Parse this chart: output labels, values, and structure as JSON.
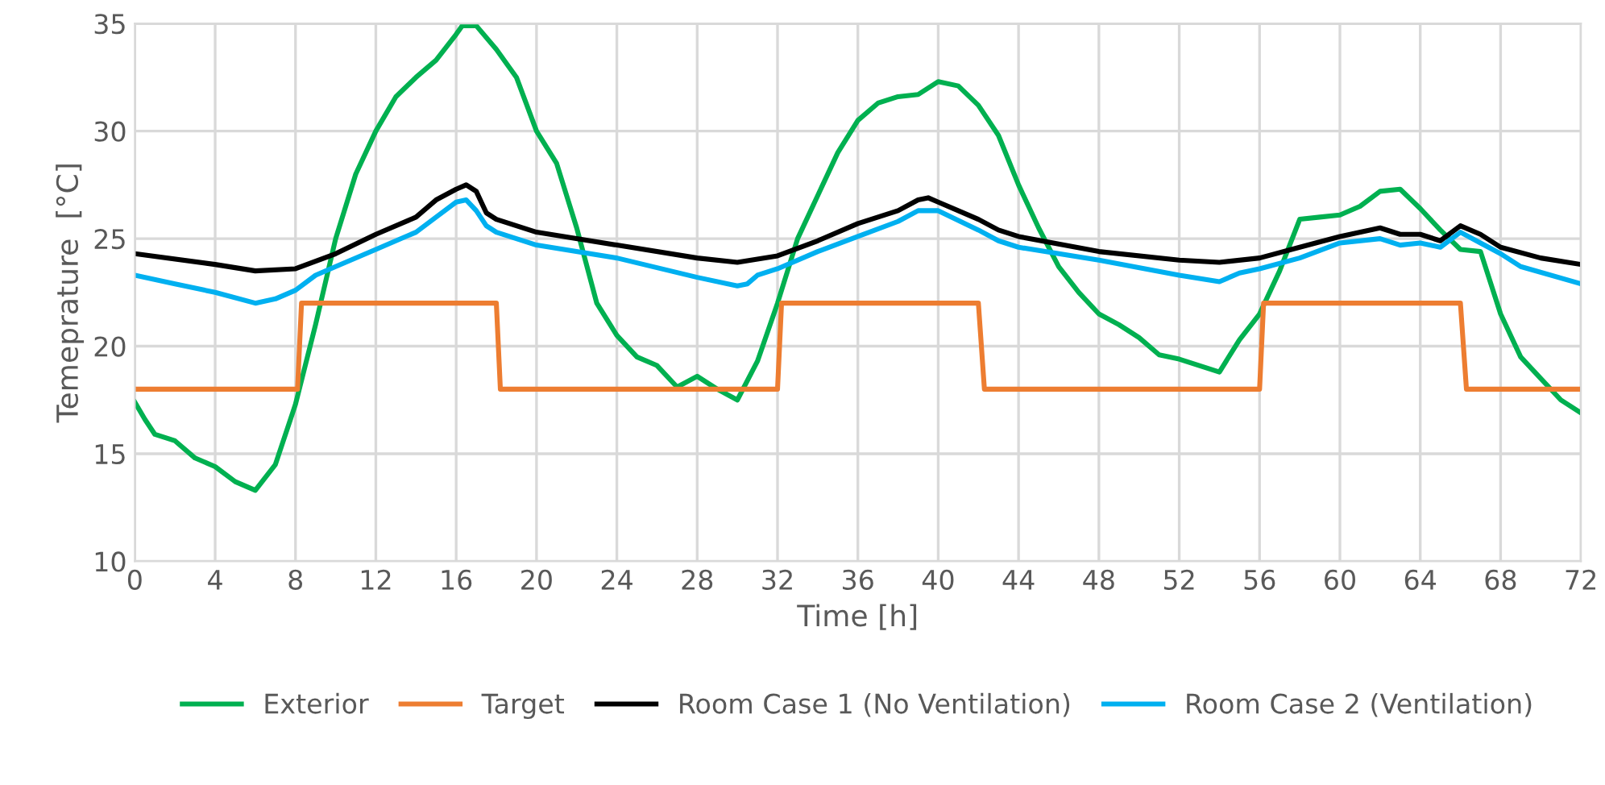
{
  "chart_data": {
    "type": "line",
    "xlabel": "Time [h]",
    "ylabel": "Temeprature  [°C]",
    "xlim": [
      0,
      72
    ],
    "xticks": [
      0,
      4,
      8,
      12,
      16,
      20,
      24,
      28,
      32,
      36,
      40,
      44,
      48,
      52,
      56,
      60,
      64,
      68,
      72
    ],
    "ylim": [
      10,
      35
    ],
    "yticks": [
      10,
      15,
      20,
      25,
      30,
      35
    ],
    "grid": true,
    "legend": "bottom",
    "marker": "none",
    "line_style": "solid",
    "series": [
      {
        "name": "Exterior",
        "color": "#00b050",
        "x": [
          0,
          0.5,
          1,
          2,
          3,
          4,
          5,
          6,
          7,
          8,
          9,
          10,
          11,
          12,
          13,
          14,
          15,
          16,
          16.3,
          17,
          18,
          19,
          20,
          21,
          22,
          23,
          24,
          25,
          26,
          27,
          28,
          29,
          30,
          31,
          32,
          33,
          34,
          35,
          36,
          37,
          38,
          39,
          40,
          41,
          42,
          43,
          44,
          45,
          46,
          47,
          48,
          49,
          50,
          51,
          52,
          53,
          54,
          55,
          56,
          57,
          58,
          59,
          60,
          61,
          62,
          63,
          64,
          65,
          66,
          67,
          68,
          69,
          70,
          71,
          72
        ],
        "values": [
          17.4,
          16.6,
          15.9,
          15.6,
          14.8,
          14.4,
          13.7,
          13.3,
          14.5,
          17.3,
          21,
          25,
          28,
          30,
          31.6,
          32.5,
          33.3,
          34.5,
          34.9,
          34.9,
          33.8,
          32.5,
          30,
          28.5,
          25.5,
          22,
          20.5,
          19.5,
          19.1,
          18.1,
          18.6,
          18,
          17.5,
          19.3,
          22,
          25,
          27,
          29,
          30.5,
          31.3,
          31.6,
          31.7,
          32.3,
          32.1,
          31.2,
          29.8,
          27.5,
          25.5,
          23.7,
          22.5,
          21.5,
          21,
          20.4,
          19.6,
          19.4,
          19.1,
          18.8,
          20.3,
          21.5,
          23.5,
          25.9,
          26,
          26.1,
          26.5,
          27.2,
          27.3,
          26.4,
          25.4,
          24.5,
          24.4,
          21.5,
          19.5,
          18.5,
          17.5,
          16.9
        ]
      },
      {
        "name": "Target",
        "color": "#ed7d31",
        "x": [
          0,
          8.1,
          8.3,
          18.0,
          18.2,
          32.0,
          32.2,
          42.0,
          42.3,
          56.0,
          56.2,
          66.0,
          66.3,
          72
        ],
        "values": [
          18,
          18,
          22,
          22,
          18,
          18,
          22,
          22,
          18,
          18,
          22,
          22,
          18,
          18
        ]
      },
      {
        "name": "Room Case 1 (No Ventilation)",
        "color": "#000000",
        "x": [
          0,
          4,
          6,
          8,
          10,
          12,
          14,
          15,
          16,
          16.5,
          17,
          17.5,
          18,
          20,
          24,
          28,
          30,
          32,
          34,
          36,
          38,
          39,
          39.5,
          40,
          42,
          43,
          44,
          48,
          52,
          54,
          56,
          58,
          60,
          62,
          63,
          64,
          65,
          66,
          67,
          68,
          70,
          72
        ],
        "values": [
          24.3,
          23.8,
          23.5,
          23.6,
          24.3,
          25.2,
          26,
          26.8,
          27.3,
          27.5,
          27.2,
          26.2,
          25.9,
          25.3,
          24.7,
          24.1,
          23.9,
          24.2,
          24.9,
          25.7,
          26.3,
          26.8,
          26.9,
          26.7,
          25.9,
          25.4,
          25.1,
          24.4,
          24.0,
          23.9,
          24.1,
          24.6,
          25.1,
          25.5,
          25.2,
          25.2,
          24.9,
          25.6,
          25.2,
          24.6,
          24.1,
          23.8
        ]
      },
      {
        "name": "Room Case 2 (Ventilation)",
        "color": "#00b0f0",
        "x": [
          0,
          2,
          4,
          6,
          7,
          8,
          9,
          10,
          12,
          14,
          15,
          16,
          16.5,
          17,
          17.5,
          18,
          20,
          24,
          28,
          30,
          30.5,
          31,
          32,
          34,
          36,
          38,
          39,
          40,
          42,
          43,
          44,
          48,
          52,
          54,
          55,
          56,
          58,
          60,
          62,
          63,
          64,
          65,
          66,
          67,
          68,
          69,
          72
        ],
        "values": [
          23.3,
          22.9,
          22.5,
          22.0,
          22.2,
          22.6,
          23.3,
          23.7,
          24.5,
          25.3,
          26.0,
          26.7,
          26.8,
          26.3,
          25.6,
          25.3,
          24.7,
          24.1,
          23.2,
          22.8,
          22.9,
          23.3,
          23.6,
          24.4,
          25.1,
          25.8,
          26.3,
          26.3,
          25.4,
          24.9,
          24.6,
          24.0,
          23.3,
          23.0,
          23.4,
          23.6,
          24.1,
          24.8,
          25.0,
          24.7,
          24.8,
          24.6,
          25.3,
          24.8,
          24.3,
          23.7,
          22.9
        ]
      }
    ]
  }
}
